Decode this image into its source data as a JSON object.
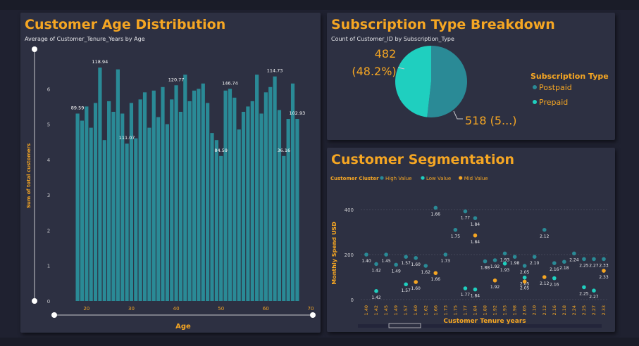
{
  "age_panel": {
    "title": "Customer Age Distribution",
    "subtitle": "Average of Customer_Tenure_Years by Age"
  },
  "sub_panel": {
    "title": "Subscription Type Breakdown",
    "subtitle": "Count of Customer_ID by Subscription_Type",
    "label_prepaid_value": "482",
    "label_prepaid_pct": "(48.2%)",
    "label_postpaid": "518 (5...)",
    "legend_title": "Subscription Type"
  },
  "seg_panel": {
    "title": "Customer Segmentation",
    "legend_title": "Customer Cluster"
  },
  "colors": {
    "teal_dark": "#2a8a96",
    "teal_light": "#1fcfbf",
    "orange": "#f5a623",
    "panel_bg": "#2d3042",
    "page_bg": "#1f2130"
  },
  "chart_data": [
    {
      "type": "bar",
      "xlabel": "Age",
      "ylabel": "Sum of total customers",
      "xlim": [
        15,
        70
      ],
      "ylim": [
        0,
        7
      ],
      "x_ticks": [
        20,
        30,
        40,
        50,
        60,
        70
      ],
      "y_ticks": [
        0,
        1,
        2,
        3,
        4,
        5,
        6
      ],
      "x": [
        18,
        19,
        20,
        21,
        22,
        23,
        24,
        25,
        26,
        27,
        28,
        29,
        30,
        31,
        32,
        33,
        34,
        35,
        36,
        37,
        38,
        39,
        40,
        41,
        42,
        43,
        44,
        45,
        46,
        47,
        48,
        49,
        50,
        51,
        52,
        53,
        54,
        55,
        56,
        57,
        58,
        59,
        60,
        61,
        62,
        63,
        64,
        65,
        66,
        67
      ],
      "values": [
        5.3,
        5.1,
        5.5,
        4.9,
        5.6,
        6.6,
        4.55,
        5.65,
        5.35,
        6.55,
        5.3,
        4.45,
        5.6,
        4.6,
        5.7,
        5.9,
        4.9,
        5.95,
        5.2,
        6.05,
        5.0,
        5.7,
        6.1,
        5.35,
        6.4,
        5.65,
        5.95,
        6.0,
        6.15,
        5.6,
        4.75,
        4.55,
        4.1,
        5.95,
        6.0,
        5.75,
        4.85,
        5.35,
        5.5,
        5.65,
        6.4,
        5.3,
        5.9,
        6.05,
        6.35,
        5.4,
        4.1,
        5.15,
        6.15,
        5.15
      ],
      "data_labels": [
        {
          "x": 18,
          "text": "89.59"
        },
        {
          "x": 23,
          "text": "118.94"
        },
        {
          "x": 29,
          "text": "111.07"
        },
        {
          "x": 40,
          "text": "120.77"
        },
        {
          "x": 50,
          "text": "84.59"
        },
        {
          "x": 52,
          "text": "146.74"
        },
        {
          "x": 62,
          "text": "114.73"
        },
        {
          "x": 64,
          "text": "36.16"
        },
        {
          "x": 67,
          "text": "102.93"
        }
      ]
    },
    {
      "type": "pie",
      "slices": [
        {
          "name": "Postpaid",
          "value": 518,
          "color": "#2a8a96"
        },
        {
          "name": "Prepaid",
          "value": 482,
          "color": "#1fcfbf"
        }
      ],
      "legend_placement": "right"
    },
    {
      "type": "scatter",
      "xlabel": "Customer Tenure years",
      "ylabel": "Monthly Spend USD",
      "ylim": [
        0,
        400
      ],
      "y_ticks": [
        0,
        200,
        400
      ],
      "categories": [
        "1.40",
        "1.42",
        "1.45",
        "1.49",
        "1.57",
        "1.60",
        "1.62",
        "1.66",
        "1.73",
        "1.75",
        "1.77",
        "1.84",
        "1.88",
        "1.92",
        "1.93",
        "1.98",
        "2.05",
        "2.10",
        "2.12",
        "2.16",
        "2.18",
        "2.24",
        "2.25",
        "2.27",
        "2.33"
      ],
      "series": [
        {
          "name": "High Value",
          "color": "#2a8a96",
          "points": [
            {
              "x": "1.40",
              "y": 200,
              "label": "1.40"
            },
            {
              "x": "1.42",
              "y": 158,
              "label": "1.42"
            },
            {
              "x": "1.45",
              "y": 200,
              "label": "1.45"
            },
            {
              "x": "1.49",
              "y": 155,
              "label": "1.49"
            },
            {
              "x": "1.57",
              "y": 190,
              "label": "1.57"
            },
            {
              "x": "1.60",
              "y": 185,
              "label": "1.60"
            },
            {
              "x": "1.62",
              "y": 150,
              "label": "1.62"
            },
            {
              "x": "1.66",
              "y": 408,
              "label": "1.66"
            },
            {
              "x": "1.73",
              "y": 200,
              "label": "1.73"
            },
            {
              "x": "1.75",
              "y": 310,
              "label": "1.75"
            },
            {
              "x": "1.77",
              "y": 392,
              "label": "1.77"
            },
            {
              "x": "1.84",
              "y": 362,
              "label": "1.84"
            },
            {
              "x": "1.88",
              "y": 170,
              "label": "1.88"
            },
            {
              "x": "1.92",
              "y": 175,
              "label": "1.92"
            },
            {
              "x": "1.93",
              "y": 205,
              "label": "1.93"
            },
            {
              "x": "1.98",
              "y": 190,
              "label": "1.98"
            },
            {
              "x": "2.05",
              "y": 150,
              "label": "2.05"
            },
            {
              "x": "2.10",
              "y": 190,
              "label": "2.10"
            },
            {
              "x": "2.12",
              "y": 310,
              "label": "2.12"
            },
            {
              "x": "2.16",
              "y": 162,
              "label": "2.16"
            },
            {
              "x": "2.18",
              "y": 168,
              "label": "2.18"
            },
            {
              "x": "2.24",
              "y": 205,
              "label": "2.24"
            },
            {
              "x": "2.25",
              "y": 180,
              "label": "2.25"
            },
            {
              "x": "2.27",
              "y": 180,
              "label": "2.27"
            },
            {
              "x": "2.33",
              "y": 180,
              "label": "2.33"
            }
          ]
        },
        {
          "name": "Low Value",
          "color": "#1fcfbf",
          "points": [
            {
              "x": "1.42",
              "y": 38,
              "label": "1.42"
            },
            {
              "x": "1.57",
              "y": 68,
              "label": "1.57"
            },
            {
              "x": "1.77",
              "y": 50,
              "label": "1.77"
            },
            {
              "x": "1.84",
              "y": 45,
              "label": "1.84"
            },
            {
              "x": "1.93",
              "y": 160,
              "label": "1.93"
            },
            {
              "x": "2.05",
              "y": 98,
              "label": "2.05"
            },
            {
              "x": "2.16",
              "y": 95,
              "label": "2.16"
            },
            {
              "x": "2.25",
              "y": 55,
              "label": "2.25"
            },
            {
              "x": "2.27",
              "y": 40,
              "label": "2.27"
            }
          ]
        },
        {
          "name": "Mid Value",
          "color": "#f5a623",
          "points": [
            {
              "x": "1.60",
              "y": 78,
              "label": "1.60"
            },
            {
              "x": "1.66",
              "y": 118,
              "label": "1.66"
            },
            {
              "x": "1.84",
              "y": 285,
              "label": "1.84"
            },
            {
              "x": "1.92",
              "y": 85,
              "label": "1.92"
            },
            {
              "x": "2.05",
              "y": 80,
              "label": "2.05"
            },
            {
              "x": "2.12",
              "y": 100,
              "label": "2.12"
            },
            {
              "x": "2.33",
              "y": 128,
              "label": "2.33"
            }
          ]
        }
      ]
    }
  ]
}
